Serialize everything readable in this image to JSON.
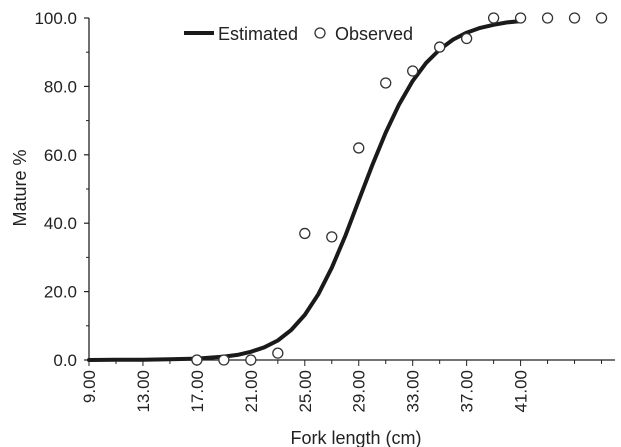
{
  "chart_data": {
    "type": "line",
    "xlabel": "Fork length (cm)",
    "ylabel": "Mature %",
    "xlim": [
      9,
      48
    ],
    "ylim": [
      0,
      100
    ],
    "x_tick_values": [
      9,
      13,
      17,
      21,
      25,
      29,
      33,
      37,
      41
    ],
    "x_tick_labels": [
      "9.00",
      "13.00",
      "17.00",
      "21.00",
      "25.00",
      "29.00",
      "33.00",
      "37.00",
      "41.00"
    ],
    "y_tick_values": [
      0,
      20,
      40,
      60,
      80,
      100
    ],
    "y_tick_labels": [
      "0.0",
      "20.0",
      "40.0",
      "60.0",
      "80.0",
      "100.0"
    ],
    "grid": false,
    "legend_position": "top-center",
    "series": [
      {
        "name": "Estimated",
        "style": "line",
        "color": "#1a1a1a",
        "x": [
          9,
          11,
          13,
          15,
          17,
          19,
          20,
          21,
          22,
          23,
          24,
          25,
          26,
          27,
          28,
          29,
          30,
          31,
          32,
          33,
          34,
          35,
          36,
          37,
          38,
          39,
          40,
          41
        ],
        "y": [
          0.0,
          0.1,
          0.1,
          0.2,
          0.4,
          1.0,
          1.5,
          2.4,
          3.7,
          5.7,
          8.8,
          13.2,
          19.2,
          27.0,
          36.3,
          46.6,
          56.9,
          66.5,
          74.8,
          81.6,
          86.9,
          90.8,
          93.7,
          95.7,
          97.1,
          98.0,
          98.7,
          99.1
        ]
      },
      {
        "name": "Observed",
        "style": "markers",
        "color": "#333333",
        "x": [
          17,
          19,
          21,
          23,
          25,
          27,
          29,
          31,
          33,
          35,
          37,
          39,
          41,
          43,
          45,
          47
        ],
        "y": [
          0,
          0,
          0,
          2,
          37,
          36,
          62,
          81,
          84.5,
          91.5,
          94,
          100,
          100,
          100,
          100,
          100
        ]
      }
    ]
  }
}
